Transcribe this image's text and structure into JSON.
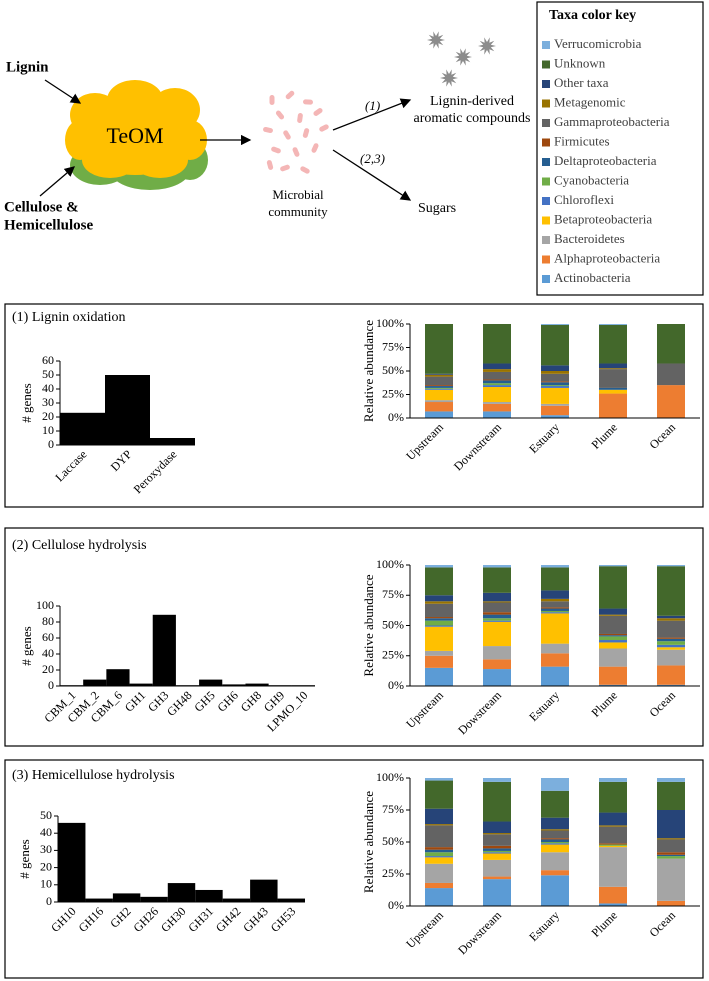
{
  "diagram": {
    "lignin": "Lignin",
    "teom": "TeOM",
    "cellulose": [
      "Cellulose &",
      "Hemicellulose"
    ],
    "microbial": [
      "Microbial",
      "community"
    ],
    "path1": "(1)",
    "path23": "(2,3)",
    "aromatic": [
      "Lignin-derived",
      "aromatic compounds"
    ],
    "sugars": "Sugars"
  },
  "taxa_key": {
    "title": "Taxa color key",
    "taxa": [
      {
        "name": "Verrucomicrobia",
        "color": "#7CAFDD"
      },
      {
        "name": "Unknown",
        "color": "#43682B"
      },
      {
        "name": "Other taxa",
        "color": "#264478"
      },
      {
        "name": "Metagenomic",
        "color": "#997300"
      },
      {
        "name": "Gammaproteobacteria",
        "color": "#636363"
      },
      {
        "name": "Firmicutes",
        "color": "#9E480E"
      },
      {
        "name": "Deltaproteobacteria",
        "color": "#255E91"
      },
      {
        "name": "Cyanobacteria",
        "color": "#70AD47"
      },
      {
        "name": "Chloroflexi",
        "color": "#4472C4"
      },
      {
        "name": "Betaproteobacteria",
        "color": "#FFC000"
      },
      {
        "name": "Bacteroidetes",
        "color": "#A5A5A5"
      },
      {
        "name": "Alphaproteobacteria",
        "color": "#ED7D31"
      },
      {
        "name": "Actinobacteria",
        "color": "#5B9BD5"
      }
    ]
  },
  "chart_data": [
    {
      "type": "bar",
      "title": "(1) Lignin oxidation",
      "ylabel": "# genes",
      "categories": [
        "Laccase",
        "DYP",
        "Peroxydase"
      ],
      "values": [
        23,
        50,
        5
      ],
      "color": "#000000",
      "ylim": [
        0,
        60
      ],
      "yticks": [
        0,
        10,
        20,
        30,
        40,
        50,
        60
      ]
    },
    {
      "type": "stacked_bar",
      "ylabel": "Relative abundance",
      "categories": [
        "Upstream",
        "Downstream",
        "Estuary",
        "Plume",
        "Ocean"
      ],
      "series": [
        {
          "values": [
            0,
            0,
            1,
            1,
            0
          ]
        },
        {
          "values": [
            53,
            42,
            43,
            41,
            42
          ]
        },
        {
          "values": [
            1,
            6,
            6,
            5,
            0
          ]
        },
        {
          "values": [
            2,
            3,
            3,
            1,
            0
          ]
        },
        {
          "values": [
            9,
            8,
            8,
            20,
            23
          ]
        },
        {
          "values": [
            1,
            1,
            1,
            0,
            0
          ]
        },
        {
          "values": [
            2,
            3,
            3,
            2,
            0
          ]
        },
        {
          "values": [
            1,
            2,
            1,
            0,
            0
          ]
        },
        {
          "values": [
            1,
            2,
            2,
            0,
            0
          ]
        },
        {
          "values": [
            11,
            16,
            17,
            4,
            0
          ]
        },
        {
          "values": [
            2,
            2,
            2,
            0,
            0
          ]
        },
        {
          "values": [
            10,
            8,
            10,
            26,
            35
          ]
        },
        {
          "values": [
            7,
            7,
            3,
            0,
            0
          ]
        }
      ],
      "ylim": [
        0,
        100
      ],
      "yticks": [
        {
          "value": 0,
          "label": "0%"
        },
        {
          "value": 25,
          "label": "25%"
        },
        {
          "value": 50,
          "label": "50%"
        },
        {
          "value": 75,
          "label": "75%"
        },
        {
          "value": 100,
          "label": "100%"
        }
      ]
    },
    {
      "type": "bar",
      "title": "(2) Cellulose hydrolysis",
      "ylabel": "# genes",
      "categories": [
        "CBM_1",
        "CBM_2",
        "CBM_6",
        "GH1",
        "GH3",
        "GH48",
        "GH5",
        "GH6",
        "GH8",
        "GH9",
        "LPMO_10"
      ],
      "values": [
        1,
        8,
        21,
        3,
        89,
        1,
        8,
        2,
        3,
        1,
        1
      ],
      "color": "#000000",
      "ylim": [
        0,
        100
      ],
      "yticks": [
        0,
        20,
        40,
        60,
        80,
        100
      ]
    },
    {
      "type": "stacked_bar",
      "ylabel": "Relative abundance",
      "categories": [
        "Upstream",
        "Dowstream",
        "Estuary",
        "Plume",
        "Ocean"
      ],
      "series": [
        {
          "values": [
            2,
            2,
            2,
            1,
            1
          ]
        },
        {
          "values": [
            23,
            21,
            19,
            35,
            41
          ]
        },
        {
          "values": [
            5,
            7,
            7,
            5,
            2
          ]
        },
        {
          "values": [
            2,
            1,
            2,
            1,
            2
          ]
        },
        {
          "values": [
            11,
            8,
            5,
            15,
            14
          ]
        },
        {
          "values": [
            1,
            2,
            1,
            1,
            1
          ]
        },
        {
          "values": [
            2,
            3,
            2,
            1,
            2
          ]
        },
        {
          "values": [
            4,
            2,
            1,
            3,
            3
          ]
        },
        {
          "values": [
            1,
            1,
            1,
            2,
            2
          ]
        },
        {
          "values": [
            20,
            20,
            25,
            5,
            2
          ]
        },
        {
          "values": [
            4,
            11,
            8,
            15,
            13
          ]
        },
        {
          "values": [
            10,
            8,
            11,
            15,
            16
          ]
        },
        {
          "values": [
            15,
            14,
            16,
            1,
            1
          ]
        }
      ],
      "ylim": [
        0,
        100
      ],
      "yticks": [
        {
          "value": 0,
          "label": "0%"
        },
        {
          "value": 25,
          "label": "25%"
        },
        {
          "value": 50,
          "label": "50%"
        },
        {
          "value": 75,
          "label": "75%"
        },
        {
          "value": 100,
          "label": "100%"
        }
      ]
    },
    {
      "type": "bar",
      "title": "(3) Hemicellulose hydrolysis",
      "ylabel": "# genes",
      "categories": [
        "GH10",
        "GH16",
        "GH2",
        "GH26",
        "GH30",
        "GH31",
        "GH42",
        "GH43",
        "GH53"
      ],
      "values": [
        46,
        2,
        5,
        3,
        11,
        7,
        2,
        13,
        2
      ],
      "color": "#000000",
      "ylim": [
        0,
        50
      ],
      "yticks": [
        0,
        10,
        20,
        30,
        40,
        50
      ]
    },
    {
      "type": "stacked_bar",
      "ylabel": "Relative abundance",
      "categories": [
        "Upstream",
        "Dowstream",
        "Estuary",
        "Plume",
        "Ocean"
      ],
      "series": [
        {
          "values": [
            2,
            3,
            10,
            3,
            3
          ]
        },
        {
          "values": [
            22,
            31,
            21,
            24,
            22
          ]
        },
        {
          "values": [
            12,
            9,
            9,
            10,
            22
          ]
        },
        {
          "values": [
            1,
            1,
            1,
            1,
            1
          ]
        },
        {
          "values": [
            17,
            9,
            6,
            13,
            10
          ]
        },
        {
          "values": [
            2,
            2,
            1,
            1,
            2
          ]
        },
        {
          "values": [
            2,
            2,
            2,
            0,
            1
          ]
        },
        {
          "values": [
            3,
            1,
            1,
            1,
            2
          ]
        },
        {
          "values": [
            1,
            1,
            1,
            0,
            0
          ]
        },
        {
          "values": [
            5,
            5,
            6,
            1,
            0
          ]
        },
        {
          "values": [
            15,
            13,
            14,
            31,
            33
          ]
        },
        {
          "values": [
            4,
            2,
            4,
            13,
            4
          ]
        },
        {
          "values": [
            14,
            21,
            24,
            2,
            0
          ]
        }
      ],
      "ylim": [
        0,
        100
      ],
      "yticks": [
        {
          "value": 0,
          "label": "0%"
        },
        {
          "value": 25,
          "label": "25%"
        },
        {
          "value": 50,
          "label": "50%"
        },
        {
          "value": 75,
          "label": "75%"
        },
        {
          "value": 100,
          "label": "100%"
        }
      ]
    }
  ]
}
